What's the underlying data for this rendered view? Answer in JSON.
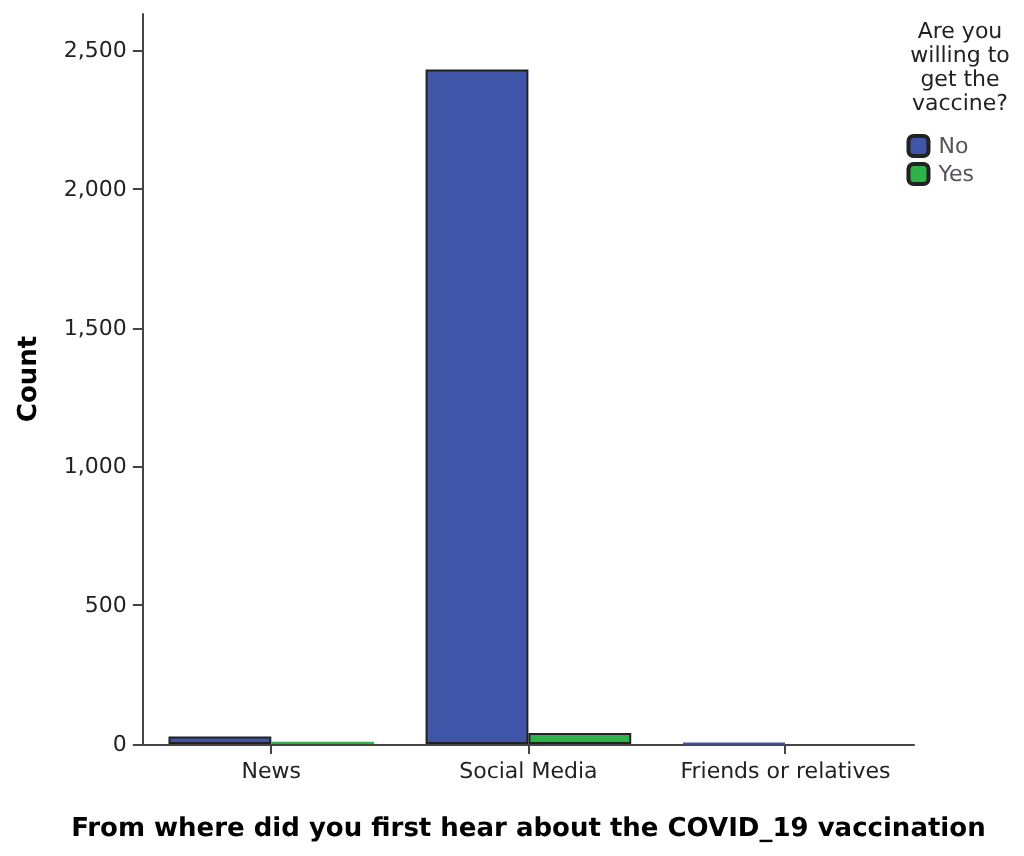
{
  "chart_data": {
    "type": "bar",
    "xlabel": "From where did you first hear about the COVID_19 vaccination",
    "ylabel": "Count",
    "legend_title": "Are you willing to get the vaccine?",
    "categories": [
      "News",
      "Social Media",
      "Friends or relatives"
    ],
    "series": [
      {
        "name": "No",
        "color": "#3f55a8",
        "values": [
          27,
          2430,
          3
        ]
      },
      {
        "name": "Yes",
        "color": "#2db34a",
        "values": [
          8,
          40,
          null
        ]
      }
    ],
    "ylim": [
      0,
      2630
    ],
    "yticks": [
      {
        "value": 0,
        "label": "0"
      },
      {
        "value": 500,
        "label": "500"
      },
      {
        "value": 1000,
        "label": "1,000"
      },
      {
        "value": 1500,
        "label": "1,500"
      },
      {
        "value": 2000,
        "label": "2,000"
      },
      {
        "value": 2500,
        "label": "2,500"
      }
    ],
    "grid": false,
    "legend": "top right"
  }
}
